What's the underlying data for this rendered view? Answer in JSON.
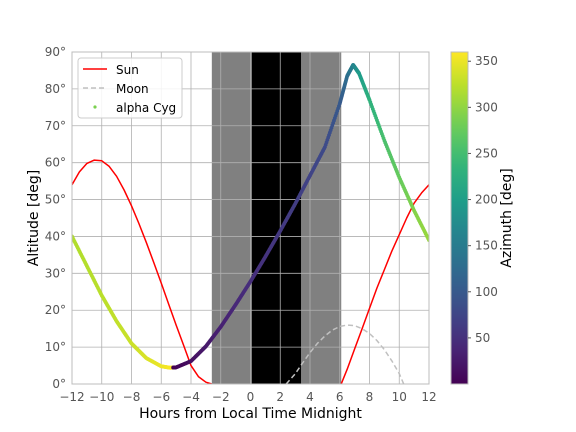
{
  "chart_data": {
    "type": "line",
    "xlabel": "Hours from Local Time Midnight",
    "ylabel": "Altitude [deg]",
    "xlim": [
      -12,
      12
    ],
    "ylim": [
      0,
      90
    ],
    "x_ticks": [
      -12,
      -10,
      -8,
      -6,
      -4,
      -2,
      0,
      2,
      4,
      6,
      8,
      10,
      12
    ],
    "x_tick_labels": [
      "−12",
      "−10",
      "−8",
      "−6",
      "−4",
      "−2",
      "0",
      "2",
      "4",
      "6",
      "8",
      "10",
      "12"
    ],
    "y_ticks": [
      0,
      10,
      20,
      30,
      40,
      50,
      60,
      70,
      80,
      90
    ],
    "y_tick_labels": [
      "0°",
      "10°",
      "20°",
      "30°",
      "40°",
      "50°",
      "60°",
      "70°",
      "80°",
      "90°"
    ],
    "grid": true,
    "legend_position": "top-left",
    "twilight_shading": {
      "gray_bands": [
        [
          -2.6,
          0.1
        ],
        [
          3.4,
          6.1
        ]
      ],
      "night": [
        0.1,
        3.4
      ],
      "gray_color": "#808080",
      "night_color": "#000000"
    },
    "series": [
      {
        "name": "Sun",
        "style": "solid",
        "color": "#ff0000",
        "x": [
          -12,
          -11.5,
          -11,
          -10.5,
          -10,
          -9.5,
          -9,
          -8.5,
          -8,
          -7.5,
          -7,
          -6.5,
          -6,
          -5.5,
          -5,
          -4.5,
          -4,
          -3.5,
          -3,
          -2.6
        ],
        "y": [
          54,
          57.5,
          59.8,
          60.7,
          60.5,
          59,
          56.3,
          52.6,
          48.3,
          43.5,
          38.3,
          32.9,
          27.3,
          21.6,
          16,
          10.5,
          5,
          2,
          0.5,
          0
        ]
      },
      {
        "name": "Sun",
        "style": "solid",
        "color": "#ff0000",
        "x": [
          6.1,
          6.5,
          7,
          7.5,
          8,
          8.5,
          9,
          9.5,
          10,
          10.5,
          11,
          11.5,
          12
        ],
        "y": [
          0,
          4,
          9.5,
          15,
          20.5,
          26,
          31,
          36,
          40.5,
          45,
          49,
          51.8,
          54
        ]
      },
      {
        "name": "Moon",
        "style": "dashed",
        "color": "#c0c0c0",
        "x": [
          2.4,
          3,
          3.5,
          4,
          4.5,
          5,
          5.5,
          6,
          6.5,
          7,
          7.5,
          8,
          8.5,
          9,
          9.5,
          10,
          10.3
        ],
        "y": [
          0,
          2.7,
          5.7,
          8.5,
          11,
          13,
          14.6,
          15.6,
          16,
          15.8,
          15,
          13.7,
          11.8,
          9.3,
          6.3,
          2.8,
          0
        ]
      },
      {
        "name": "alpha Cyg",
        "style": "points",
        "colormap": "viridis",
        "x": [
          -12,
          -11,
          -10,
          -9,
          -8,
          -7,
          -6,
          -5.4,
          -5,
          -4,
          -3,
          -2,
          -1,
          0,
          1,
          2,
          3,
          4,
          5,
          6,
          6.5,
          6.9,
          7.3,
          8,
          9,
          10,
          11,
          12
        ],
        "y": [
          40,
          32,
          24,
          17,
          11,
          7,
          4.8,
          4.4,
          4.5,
          6.2,
          10.2,
          15.5,
          21.5,
          27.8,
          34.5,
          41.5,
          48.8,
          56.5,
          64.2,
          76,
          83.5,
          86.5,
          84.2,
          77,
          66,
          56,
          47,
          39
        ],
        "azimuth": [
          318,
          320,
          323,
          327,
          332,
          340,
          350,
          357,
          3,
          15,
          25,
          33,
          40,
          47,
          53,
          59,
          65,
          72,
          80,
          100,
          128,
          160,
          195,
          230,
          255,
          275,
          292,
          305
        ]
      }
    ],
    "colorbar": {
      "label": "Azimuth [deg]",
      "min": 0,
      "max": 360,
      "colormap": "viridis",
      "ticks": [
        50,
        100,
        150,
        200,
        250,
        300,
        350
      ],
      "tick_labels": [
        "50",
        "100",
        "150",
        "200",
        "250",
        "300",
        "350"
      ]
    },
    "legend": [
      "Sun",
      "Moon",
      "alpha Cyg"
    ]
  }
}
